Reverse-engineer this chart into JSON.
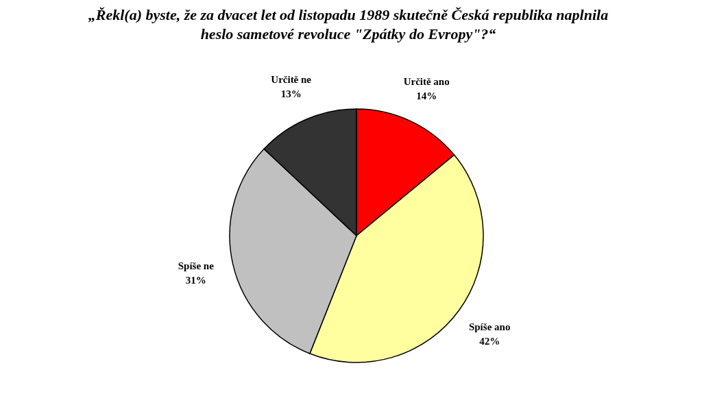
{
  "chart_data": {
    "type": "pie",
    "title": "„Řekl(a) byste, že za dvacet let od listopadu 1989 skutečně Česká republika naplnila heslo sametové revoluce \"Zpátky do Evropy\"?“",
    "categories": [
      "Určitě ano",
      "Spíše ano",
      "Spíše ne",
      "Určitě ne"
    ],
    "values": [
      14,
      42,
      31,
      13
    ],
    "value_labels": [
      "14%",
      "42%",
      "31%",
      "13%"
    ],
    "colors": [
      "#ff0000",
      "#ffffa0",
      "#c0c0c0",
      "#333333"
    ],
    "legend": false
  }
}
